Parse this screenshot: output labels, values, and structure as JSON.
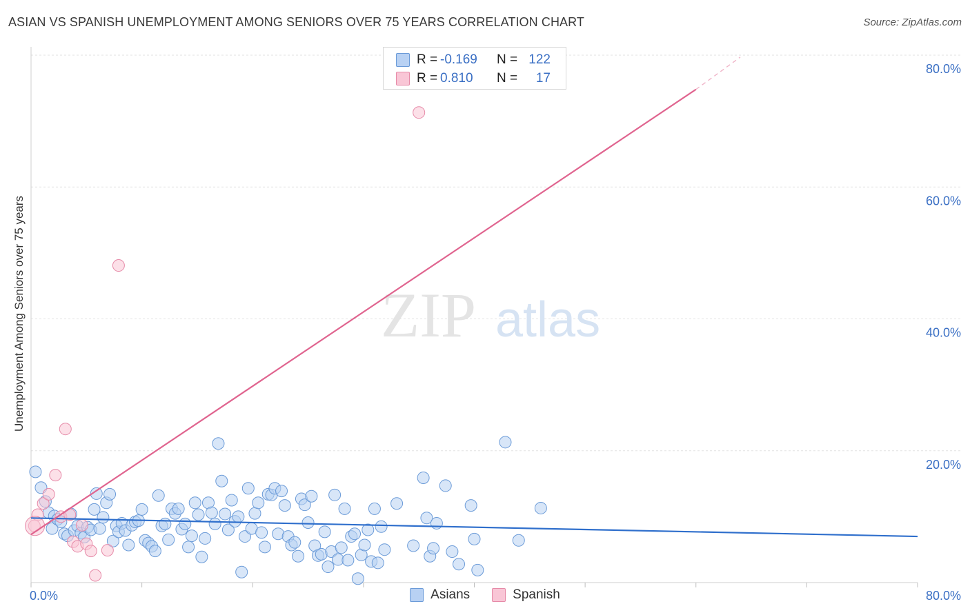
{
  "title": "ASIAN VS SPANISH UNEMPLOYMENT AMONG SENIORS OVER 75 YEARS CORRELATION CHART",
  "source": "Source: ZipAtlas.com",
  "watermark": {
    "zip": "ZIP",
    "atlas": "atlas"
  },
  "stats": [
    {
      "r_label": "R =",
      "r_value": "-0.169",
      "n_label": "N =",
      "n_value": "122",
      "color": "#6b9bd8"
    },
    {
      "r_label": "R =",
      "r_value": "0.810",
      "n_label": "N =",
      "n_value": "17",
      "color": "#e68aa8"
    }
  ],
  "legend": [
    {
      "name": "Asians",
      "color": "#6b9bd8"
    },
    {
      "name": "Spanish",
      "color": "#e68aa8"
    }
  ],
  "chart_data": {
    "type": "scatter",
    "ylabel": "Unemployment Among Seniors over 75 years",
    "xlabel": "",
    "xlim": [
      0,
      80
    ],
    "ylim": [
      0,
      80
    ],
    "x_tick_labels": [
      "0.0%",
      "80.0%"
    ],
    "y_tick_labels": [
      "20.0%",
      "40.0%",
      "60.0%",
      "80.0%"
    ],
    "y_ticks": [
      20,
      40,
      60,
      80
    ],
    "grid": true,
    "legend_position": "bottom",
    "series": [
      {
        "name": "Asians",
        "color": "#6b9bd8",
        "trend": {
          "x": [
            0,
            80
          ],
          "y": [
            9.8,
            7.0
          ]
        },
        "points": [
          [
            0.4,
            16.8
          ],
          [
            0.9,
            14.4
          ],
          [
            1.3,
            12.3
          ],
          [
            1.6,
            10.6
          ],
          [
            1.9,
            8.2
          ],
          [
            2.1,
            10.1
          ],
          [
            2.4,
            9.6
          ],
          [
            2.7,
            9.2
          ],
          [
            3.0,
            7.4
          ],
          [
            3.3,
            7.1
          ],
          [
            3.6,
            10.4
          ],
          [
            3.9,
            7.9
          ],
          [
            4.2,
            8.6
          ],
          [
            4.5,
            7.5
          ],
          [
            4.8,
            6.9
          ],
          [
            5.1,
            8.4
          ],
          [
            5.4,
            8.0
          ],
          [
            5.7,
            11.1
          ],
          [
            5.9,
            13.5
          ],
          [
            6.2,
            8.2
          ],
          [
            6.5,
            9.9
          ],
          [
            6.8,
            12.1
          ],
          [
            7.1,
            13.4
          ],
          [
            7.4,
            6.3
          ],
          [
            7.7,
            8.6
          ],
          [
            7.9,
            7.7
          ],
          [
            8.2,
            9.0
          ],
          [
            8.5,
            7.9
          ],
          [
            8.8,
            5.7
          ],
          [
            9.1,
            8.7
          ],
          [
            9.4,
            9.2
          ],
          [
            9.7,
            9.4
          ],
          [
            10.0,
            11.1
          ],
          [
            10.3,
            6.4
          ],
          [
            10.6,
            6.0
          ],
          [
            10.9,
            5.5
          ],
          [
            11.2,
            4.8
          ],
          [
            11.5,
            13.2
          ],
          [
            11.8,
            8.6
          ],
          [
            12.1,
            8.9
          ],
          [
            12.4,
            6.5
          ],
          [
            12.7,
            11.2
          ],
          [
            13.0,
            10.5
          ],
          [
            13.3,
            11.2
          ],
          [
            13.6,
            8.1
          ],
          [
            13.9,
            8.9
          ],
          [
            14.2,
            5.4
          ],
          [
            14.5,
            7.1
          ],
          [
            14.8,
            12.1
          ],
          [
            15.1,
            10.3
          ],
          [
            15.4,
            3.9
          ],
          [
            15.7,
            6.7
          ],
          [
            16.0,
            12.1
          ],
          [
            16.3,
            10.6
          ],
          [
            16.6,
            8.9
          ],
          [
            16.9,
            21.1
          ],
          [
            17.2,
            15.4
          ],
          [
            17.5,
            10.4
          ],
          [
            17.8,
            8.0
          ],
          [
            18.1,
            12.5
          ],
          [
            18.4,
            9.3
          ],
          [
            18.7,
            10.0
          ],
          [
            19.0,
            1.6
          ],
          [
            19.3,
            7.0
          ],
          [
            19.6,
            14.3
          ],
          [
            19.9,
            8.2
          ],
          [
            20.2,
            10.5
          ],
          [
            20.5,
            12.1
          ],
          [
            20.8,
            7.6
          ],
          [
            21.1,
            5.4
          ],
          [
            21.4,
            13.4
          ],
          [
            21.7,
            13.3
          ],
          [
            22.0,
            14.3
          ],
          [
            22.3,
            7.4
          ],
          [
            22.6,
            13.9
          ],
          [
            22.9,
            11.7
          ],
          [
            23.2,
            7.0
          ],
          [
            23.5,
            5.7
          ],
          [
            23.8,
            6.1
          ],
          [
            24.1,
            4.0
          ],
          [
            24.4,
            12.7
          ],
          [
            24.7,
            11.8
          ],
          [
            25.0,
            9.1
          ],
          [
            25.3,
            13.1
          ],
          [
            25.6,
            5.6
          ],
          [
            25.9,
            4.1
          ],
          [
            26.2,
            4.3
          ],
          [
            26.5,
            7.7
          ],
          [
            26.8,
            2.4
          ],
          [
            27.1,
            4.7
          ],
          [
            27.4,
            13.3
          ],
          [
            27.7,
            3.5
          ],
          [
            28.0,
            5.3
          ],
          [
            28.3,
            11.2
          ],
          [
            28.6,
            3.4
          ],
          [
            28.9,
            7.0
          ],
          [
            29.2,
            7.4
          ],
          [
            29.5,
            0.6
          ],
          [
            29.8,
            4.2
          ],
          [
            30.1,
            5.7
          ],
          [
            30.4,
            8.0
          ],
          [
            30.7,
            3.2
          ],
          [
            31.0,
            11.2
          ],
          [
            31.3,
            3.0
          ],
          [
            31.6,
            8.5
          ],
          [
            31.9,
            5.0
          ],
          [
            33.0,
            12.0
          ],
          [
            34.5,
            5.6
          ],
          [
            35.4,
            15.9
          ],
          [
            35.7,
            9.8
          ],
          [
            36.0,
            4.0
          ],
          [
            36.3,
            5.2
          ],
          [
            36.6,
            9.0
          ],
          [
            37.4,
            14.7
          ],
          [
            38.0,
            4.7
          ],
          [
            38.6,
            2.8
          ],
          [
            39.7,
            11.7
          ],
          [
            40.0,
            6.6
          ],
          [
            40.3,
            1.9
          ],
          [
            42.8,
            21.3
          ],
          [
            44.0,
            6.4
          ],
          [
            46.0,
            11.3
          ]
        ]
      },
      {
        "name": "Spanish",
        "color": "#e68aa8",
        "trend": {
          "x": [
            0,
            60
          ],
          "y": [
            7.3,
            74.8
          ]
        },
        "trend_dashed": {
          "x": [
            60,
            64
          ],
          "y": [
            74.8,
            79.7
          ]
        },
        "points": [
          [
            0.3,
            8.6
          ],
          [
            0.6,
            10.3
          ],
          [
            1.1,
            12.0
          ],
          [
            1.6,
            13.4
          ],
          [
            2.2,
            16.3
          ],
          [
            2.7,
            10.0
          ],
          [
            3.1,
            23.3
          ],
          [
            3.5,
            10.3
          ],
          [
            3.8,
            6.2
          ],
          [
            4.2,
            5.5
          ],
          [
            4.6,
            8.7
          ],
          [
            5.0,
            5.9
          ],
          [
            5.4,
            4.8
          ],
          [
            5.8,
            1.1
          ],
          [
            6.9,
            4.9
          ],
          [
            7.9,
            48.1
          ],
          [
            35.0,
            71.3
          ]
        ]
      }
    ]
  }
}
